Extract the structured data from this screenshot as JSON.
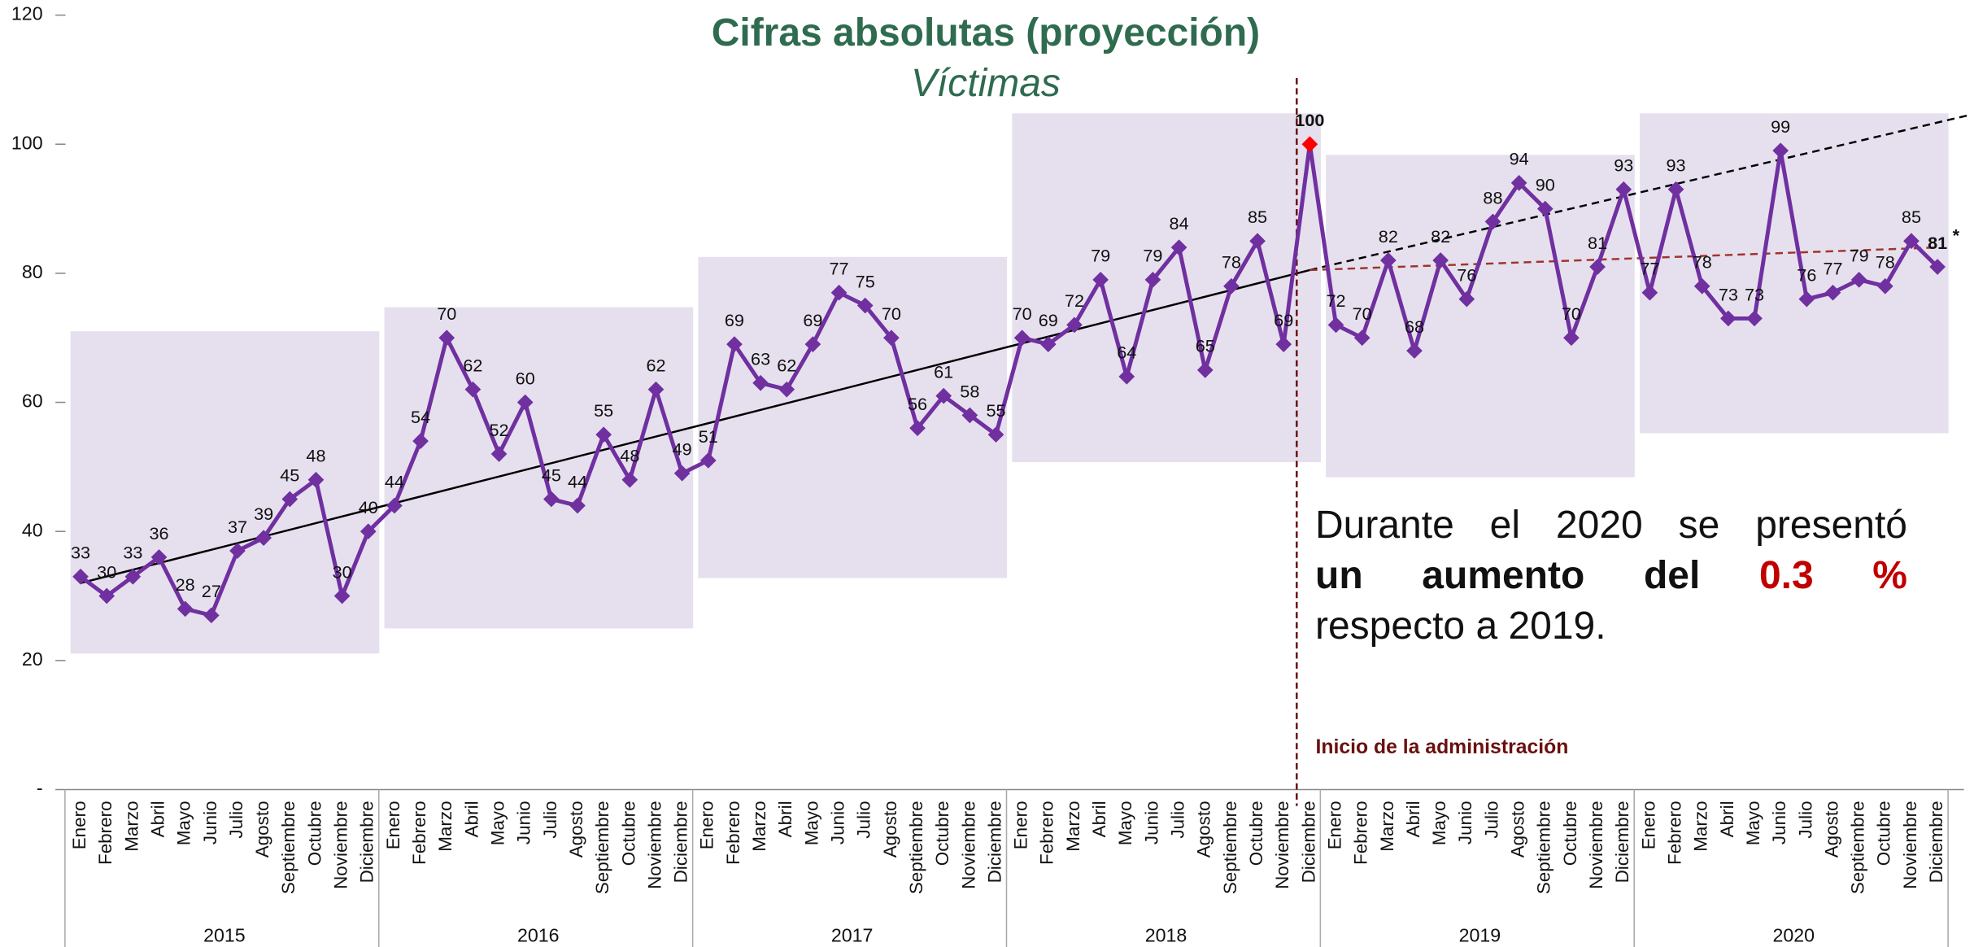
{
  "chart_data": {
    "type": "line",
    "title": "Cifras absolutas (proyección)",
    "subtitle": "Víctimas",
    "categories": [
      "Enero",
      "Febrero",
      "Marzo",
      "Abril",
      "Mayo",
      "Junio",
      "Julio",
      "Agosto",
      "Septiembre",
      "Octubre",
      "Noviembre",
      "Diciembre",
      "Enero",
      "Febrero",
      "Marzo",
      "Abril",
      "Mayo",
      "Junio",
      "Julio",
      "Agosto",
      "Septiembre",
      "Octubre",
      "Noviembre",
      "Diciembre",
      "Enero",
      "Febrero",
      "Marzo",
      "Abril",
      "Mayo",
      "Junio",
      "Julio",
      "Agosto",
      "Septiembre",
      "Octubre",
      "Noviembre",
      "Diciembre",
      "Enero",
      "Febrero",
      "Marzo",
      "Abril",
      "Mayo",
      "Junio",
      "Julio",
      "Agosto",
      "Septiembre",
      "Octubre",
      "Noviembre",
      "Diciembre",
      "Enero",
      "Febrero",
      "Marzo",
      "Abril",
      "Mayo",
      "Junio",
      "Julio",
      "Agosto",
      "Septiembre",
      "Octubre",
      "Noviembre",
      "Diciembre",
      "Enero",
      "Febrero",
      "Marzo",
      "Abril",
      "Mayo",
      "Junio",
      "Julio",
      "Agosto",
      "Septiembre",
      "Octubre",
      "Noviembre",
      "Diciembre"
    ],
    "groups": [
      "2015",
      "2016",
      "2017",
      "2018",
      "2019",
      "2020"
    ],
    "series": [
      {
        "color": "#7030a0",
        "highlight_color": "#ff0000",
        "highlight_index": 47,
        "values": [
          33,
          30,
          33,
          36,
          28,
          27,
          37,
          39,
          45,
          48,
          30,
          40,
          44,
          54,
          70,
          62,
          52,
          60,
          45,
          44,
          55,
          48,
          62,
          49,
          51,
          69,
          63,
          62,
          69,
          77,
          75,
          70,
          56,
          61,
          58,
          55,
          70,
          69,
          72,
          79,
          64,
          79,
          84,
          65,
          78,
          85,
          69,
          100,
          72,
          70,
          82,
          68,
          82,
          76,
          88,
          94,
          90,
          70,
          81,
          93,
          77,
          93,
          78,
          73,
          73,
          99,
          76,
          77,
          79,
          78,
          85,
          81
        ]
      }
    ],
    "footnote_mark": "*",
    "trend_lines": [
      {
        "color": "#000000",
        "dashed": false,
        "x": [
          0,
          47
        ],
        "values": [
          32,
          80.5
        ]
      },
      {
        "color": "#000000",
        "dashed": true,
        "x": [
          47,
          72.2
        ],
        "values": [
          80.5,
          104.5
        ]
      },
      {
        "color": "#a0342c",
        "dashed": true,
        "x": [
          47,
          71
        ],
        "values": [
          80.5,
          84
        ]
      }
    ],
    "marker_line": {
      "label": "Inicio de la administración",
      "color": "#6b0f0f"
    },
    "ylim": [
      0,
      120
    ],
    "yticks": [
      {
        "value": 0,
        "label": "-"
      },
      20,
      40,
      60,
      80,
      100,
      120
    ],
    "text_box": {
      "line1": "Durante el 2020 se presentó",
      "bold": "un aumento del",
      "highlight": "0.3 %",
      "line3": "respecto a 2019."
    }
  }
}
